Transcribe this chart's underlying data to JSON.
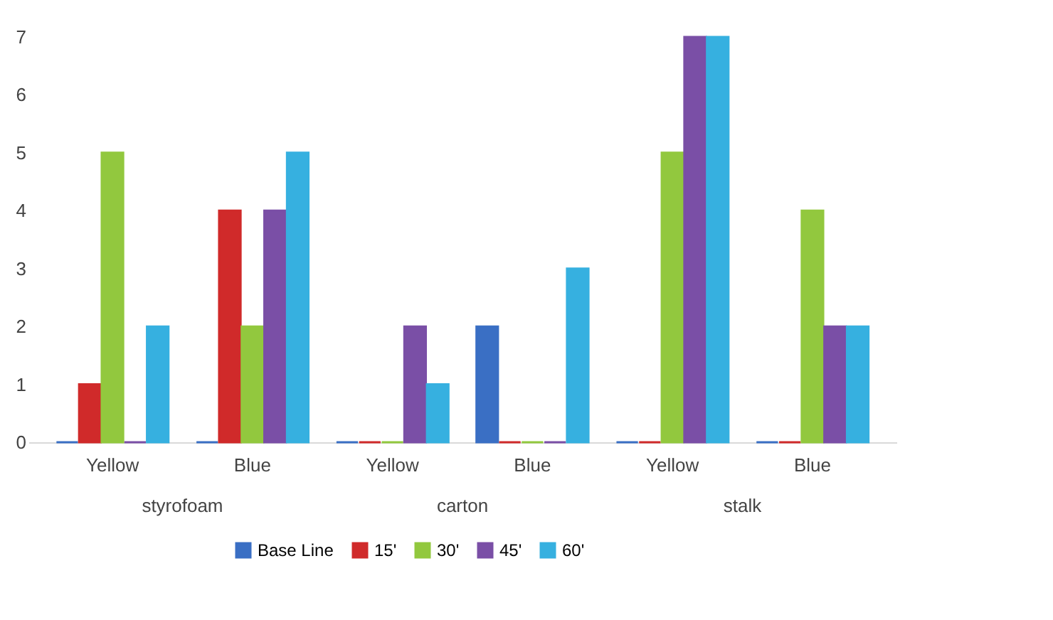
{
  "chart_data": {
    "type": "bar",
    "categories": [
      "Yellow",
      "Blue",
      "Yellow",
      "Blue",
      "Yellow",
      "Blue"
    ],
    "annotations": [
      "styrofoam",
      "carton",
      "stalk"
    ],
    "series": [
      {
        "name": "Base Line",
        "color": "#3a6fc4",
        "values": [
          0,
          0,
          0,
          2,
          0,
          0
        ]
      },
      {
        "name": "15'",
        "color": "#d02a2a",
        "values": [
          1,
          4,
          0,
          0,
          0,
          0
        ]
      },
      {
        "name": "30'",
        "color": "#92c83e",
        "values": [
          5,
          2,
          0,
          0,
          5,
          4
        ]
      },
      {
        "name": "45'",
        "color": "#7a4fa6",
        "values": [
          0,
          4,
          2,
          0,
          7,
          2
        ]
      },
      {
        "name": "60'",
        "color": "#36b0e0",
        "values": [
          2,
          5,
          1,
          3,
          7,
          2
        ]
      }
    ],
    "ylim": [
      0,
      7
    ],
    "yticks": [
      0,
      1,
      2,
      3,
      4,
      5,
      6,
      7
    ],
    "grid": false,
    "legend": "bottom"
  }
}
